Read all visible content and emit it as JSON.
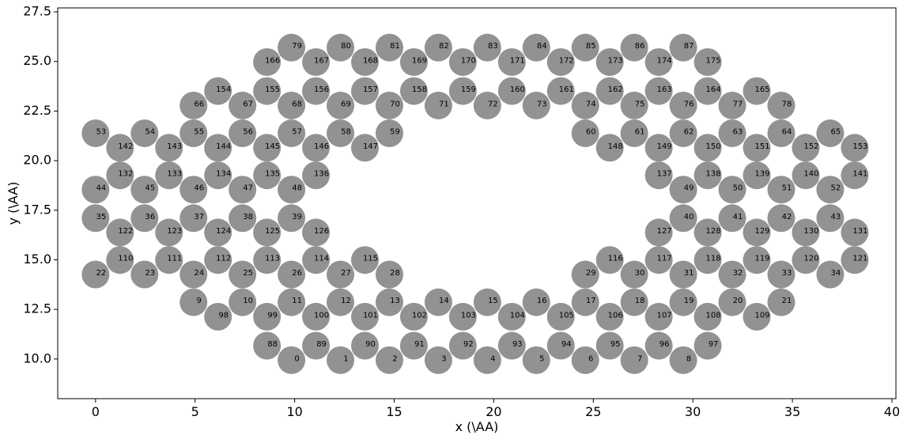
{
  "chart_data": {
    "type": "scatter",
    "title": "",
    "xlabel": "x (\\AA)",
    "ylabel": "y (\\AA)",
    "xlim": [
      -1.9,
      40.2
    ],
    "ylim": [
      8.0,
      27.7
    ],
    "xticks": [
      0,
      5,
      10,
      15,
      20,
      25,
      30,
      35,
      40
    ],
    "xtick_labels": [
      "0",
      "5",
      "10",
      "15",
      "20",
      "25",
      "30",
      "35",
      "40"
    ],
    "yticks": [
      10.0,
      12.5,
      15.0,
      17.5,
      20.0,
      22.5,
      25.0,
      27.5
    ],
    "ytick_labels": [
      "10.0",
      "12.5",
      "15.0",
      "17.5",
      "20.0",
      "22.5",
      "25.0",
      "27.5"
    ],
    "grid": false,
    "marker_color": "#929292",
    "labels": [
      "0",
      "1",
      "2",
      "3",
      "4",
      "5",
      "6",
      "7",
      "8",
      "9",
      "10",
      "11",
      "12",
      "13",
      "14",
      "15",
      "16",
      "17",
      "18",
      "19",
      "20",
      "21",
      "22",
      "23",
      "24",
      "25",
      "26",
      "27",
      "28",
      "29",
      "30",
      "31",
      "32",
      "33",
      "34",
      "35",
      "36",
      "37",
      "38",
      "39",
      "40",
      "41",
      "42",
      "43",
      "44",
      "45",
      "46",
      "47",
      "48",
      "49",
      "50",
      "51",
      "52",
      "53",
      "54",
      "55",
      "56",
      "57",
      "58",
      "59",
      "60",
      "61",
      "62",
      "63",
      "64",
      "65",
      "66",
      "67",
      "68",
      "69",
      "70",
      "71",
      "72",
      "73",
      "74",
      "75",
      "76",
      "77",
      "78",
      "79",
      "80",
      "81",
      "82",
      "83",
      "84",
      "85",
      "86",
      "87",
      "88",
      "89",
      "90",
      "91",
      "92",
      "93",
      "94",
      "95",
      "96",
      "97",
      "98",
      "99",
      "100",
      "101",
      "102",
      "103",
      "104",
      "105",
      "106",
      "107",
      "108",
      "109",
      "110",
      "111",
      "112",
      "113",
      "114",
      "115",
      "116",
      "117",
      "118",
      "119",
      "120",
      "121",
      "122",
      "123",
      "124",
      "125",
      "126",
      "127",
      "128",
      "129",
      "130",
      "131",
      "132",
      "133",
      "134",
      "135",
      "136",
      "137",
      "138",
      "139",
      "140",
      "141",
      "142",
      "143",
      "144",
      "145",
      "146",
      "147",
      "148",
      "149",
      "150",
      "151",
      "152",
      "153",
      "154",
      "155",
      "156",
      "157",
      "158",
      "159",
      "160",
      "161",
      "162",
      "163",
      "164",
      "165",
      "166",
      "167",
      "168",
      "169",
      "170",
      "171",
      "172",
      "173",
      "174",
      "175"
    ],
    "x": [
      9.84,
      12.3,
      14.76,
      17.22,
      19.68,
      22.14,
      24.6,
      27.06,
      29.52,
      4.92,
      7.38,
      9.84,
      12.3,
      14.76,
      17.22,
      19.68,
      22.14,
      24.6,
      27.06,
      29.52,
      31.98,
      34.44,
      0.0,
      2.46,
      4.92,
      7.38,
      9.84,
      12.3,
      14.76,
      24.6,
      27.06,
      29.52,
      31.98,
      34.44,
      36.9,
      0.0,
      2.46,
      4.92,
      7.38,
      9.84,
      29.52,
      31.98,
      34.44,
      36.9,
      0.0,
      2.46,
      4.92,
      7.38,
      9.84,
      29.52,
      31.98,
      34.44,
      36.9,
      0.0,
      2.46,
      4.92,
      7.38,
      9.84,
      12.3,
      14.76,
      24.6,
      27.06,
      29.52,
      31.98,
      34.44,
      36.9,
      4.92,
      7.38,
      9.84,
      12.3,
      14.76,
      17.22,
      19.68,
      22.14,
      24.6,
      27.06,
      29.52,
      31.98,
      34.44,
      9.84,
      12.3,
      14.76,
      17.22,
      19.68,
      22.14,
      24.6,
      27.06,
      29.52,
      8.61,
      11.07,
      13.53,
      15.99,
      18.45,
      20.91,
      23.37,
      25.83,
      28.29,
      30.75,
      6.15,
      8.61,
      11.07,
      13.53,
      15.99,
      18.45,
      20.91,
      23.37,
      25.83,
      28.29,
      30.75,
      33.21,
      1.23,
      3.69,
      6.15,
      8.61,
      11.07,
      13.53,
      25.83,
      28.29,
      30.75,
      33.21,
      35.67,
      38.13,
      1.23,
      3.69,
      6.15,
      8.61,
      11.07,
      28.29,
      30.75,
      33.21,
      35.67,
      38.13,
      1.23,
      3.69,
      6.15,
      8.61,
      11.07,
      28.29,
      30.75,
      33.21,
      35.67,
      38.13,
      1.23,
      3.69,
      6.15,
      8.61,
      11.07,
      13.53,
      25.83,
      28.29,
      30.75,
      33.21,
      35.67,
      38.13,
      6.15,
      8.61,
      11.07,
      13.53,
      15.99,
      18.45,
      20.91,
      23.37,
      25.83,
      28.29,
      30.75,
      33.21,
      8.61,
      11.07,
      13.53,
      15.99,
      18.45,
      20.91,
      23.37,
      25.83,
      28.29,
      30.75
    ],
    "y": [
      9.94,
      9.94,
      9.94,
      9.94,
      9.94,
      9.94,
      9.94,
      9.94,
      9.94,
      12.86,
      12.86,
      12.86,
      12.86,
      12.86,
      12.86,
      12.86,
      12.86,
      12.86,
      12.86,
      12.86,
      12.86,
      12.86,
      14.26,
      14.26,
      14.26,
      14.26,
      14.26,
      14.26,
      14.26,
      14.26,
      14.26,
      14.26,
      14.26,
      14.26,
      14.26,
      17.1,
      17.1,
      17.1,
      17.1,
      17.1,
      17.1,
      17.1,
      17.1,
      17.1,
      18.54,
      18.54,
      18.54,
      18.54,
      18.54,
      18.54,
      18.54,
      18.54,
      18.54,
      21.38,
      21.38,
      21.38,
      21.38,
      21.38,
      21.38,
      21.38,
      21.38,
      21.38,
      21.38,
      21.38,
      21.38,
      21.38,
      22.78,
      22.78,
      22.78,
      22.78,
      22.78,
      22.78,
      22.78,
      22.78,
      22.78,
      22.78,
      22.78,
      22.78,
      22.78,
      25.7,
      25.7,
      25.7,
      25.7,
      25.7,
      25.7,
      25.7,
      25.7,
      25.7,
      10.67,
      10.67,
      10.67,
      10.67,
      10.67,
      10.67,
      10.67,
      10.67,
      10.67,
      10.67,
      12.13,
      12.13,
      12.13,
      12.13,
      12.13,
      12.13,
      12.13,
      12.13,
      12.13,
      12.13,
      12.13,
      12.13,
      14.99,
      14.99,
      14.99,
      14.99,
      14.99,
      14.99,
      14.99,
      14.99,
      14.99,
      14.99,
      14.99,
      14.99,
      16.38,
      16.38,
      16.38,
      16.38,
      16.38,
      16.38,
      16.38,
      16.38,
      16.38,
      16.38,
      19.26,
      19.26,
      19.26,
      19.26,
      19.26,
      19.26,
      19.26,
      19.26,
      19.26,
      19.26,
      20.65,
      20.65,
      20.65,
      20.65,
      20.65,
      20.65,
      20.65,
      20.65,
      20.65,
      20.65,
      20.65,
      20.65,
      23.51,
      23.51,
      23.51,
      23.51,
      23.51,
      23.51,
      23.51,
      23.51,
      23.51,
      23.51,
      23.51,
      23.51,
      24.97,
      24.97,
      24.97,
      24.97,
      24.97,
      24.97,
      24.97,
      24.97,
      24.97,
      24.97
    ]
  }
}
